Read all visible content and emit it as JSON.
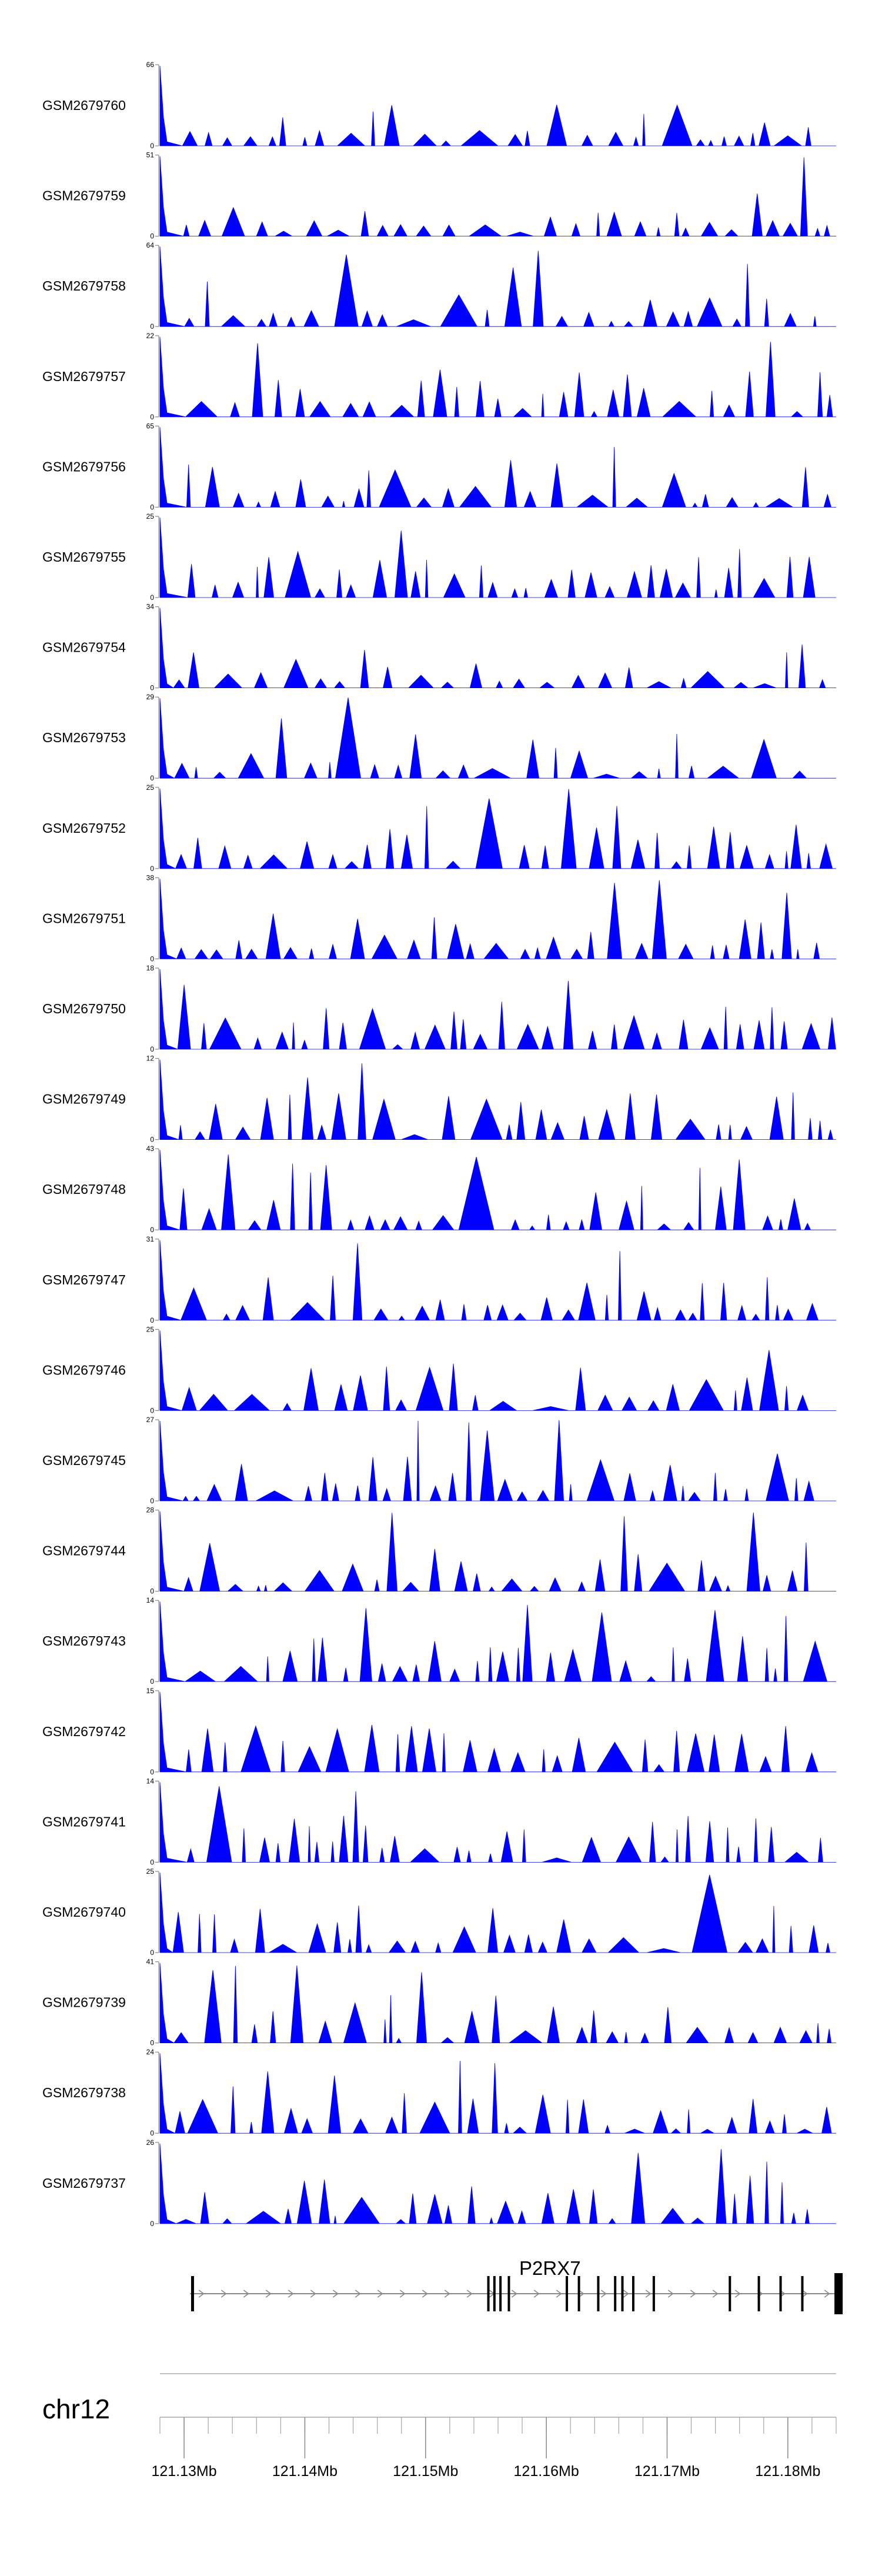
{
  "chart_data": {
    "type": "area",
    "description_of_tracks": "coverage tracks",
    "fill_color": "#0000ff",
    "x_range_mb": [
      121.128,
      121.184
    ],
    "tracks": [
      {
        "name": "GSM2679760",
        "ymax": 66,
        "ymin": 0
      },
      {
        "name": "GSM2679759",
        "ymax": 51,
        "ymin": 0
      },
      {
        "name": "GSM2679758",
        "ymax": 64,
        "ymin": 0
      },
      {
        "name": "GSM2679757",
        "ymax": 22,
        "ymin": 0
      },
      {
        "name": "GSM2679756",
        "ymax": 65,
        "ymin": 0
      },
      {
        "name": "GSM2679755",
        "ymax": 25,
        "ymin": 0
      },
      {
        "name": "GSM2679754",
        "ymax": 34,
        "ymin": 0
      },
      {
        "name": "GSM2679753",
        "ymax": 29,
        "ymin": 0
      },
      {
        "name": "GSM2679752",
        "ymax": 25,
        "ymin": 0
      },
      {
        "name": "GSM2679751",
        "ymax": 38,
        "ymin": 0
      },
      {
        "name": "GSM2679750",
        "ymax": 18,
        "ymin": 0
      },
      {
        "name": "GSM2679749",
        "ymax": 12,
        "ymin": 0
      },
      {
        "name": "GSM2679748",
        "ymax": 43,
        "ymin": 0
      },
      {
        "name": "GSM2679747",
        "ymax": 31,
        "ymin": 0
      },
      {
        "name": "GSM2679746",
        "ymax": 25,
        "ymin": 0
      },
      {
        "name": "GSM2679745",
        "ymax": 27,
        "ymin": 0
      },
      {
        "name": "GSM2679744",
        "ymax": 28,
        "ymin": 0
      },
      {
        "name": "GSM2679743",
        "ymax": 14,
        "ymin": 0
      },
      {
        "name": "GSM2679742",
        "ymax": 15,
        "ymin": 0
      },
      {
        "name": "GSM2679741",
        "ymax": 14,
        "ymin": 0
      },
      {
        "name": "GSM2679740",
        "ymax": 25,
        "ymin": 0
      },
      {
        "name": "GSM2679739",
        "ymax": 41,
        "ymin": 0
      },
      {
        "name": "GSM2679738",
        "ymax": 24,
        "ymin": 0
      },
      {
        "name": "GSM2679737",
        "ymax": 26,
        "ymin": 0
      }
    ],
    "gene": {
      "name": "P2RX7",
      "start_mb": 121.1305,
      "end_mb": 121.1845,
      "exons_mb": [
        121.1307,
        121.1552,
        121.1557,
        121.1562,
        121.1569,
        121.1617,
        121.1627,
        121.1643,
        121.1657,
        121.1663,
        121.1672,
        121.1689,
        121.1752,
        121.1776,
        121.1794,
        121.1812,
        121.1842
      ]
    },
    "chromosome": "chr12",
    "axis": {
      "ticks_mb": [
        121.13,
        121.14,
        121.15,
        121.16,
        121.17,
        121.18
      ],
      "tick_labels": [
        "121.13Mb",
        "121.14Mb",
        "121.15Mb",
        "121.16Mb",
        "121.17Mb",
        "121.18Mb"
      ],
      "minor_step_mb": 0.002
    }
  }
}
